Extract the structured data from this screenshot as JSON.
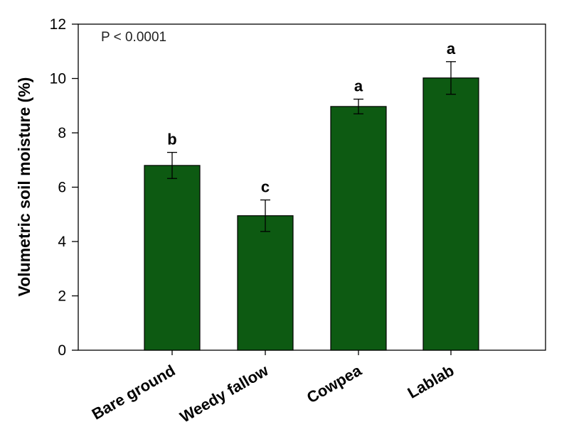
{
  "chart_data": {
    "type": "bar",
    "categories": [
      "Bare ground",
      "Weedy fallow",
      "Cowpea",
      "Lablab"
    ],
    "values": [
      6.8,
      4.95,
      8.97,
      10.02
    ],
    "errors": [
      0.48,
      0.58,
      0.27,
      0.6
    ],
    "significance_letters": [
      "b",
      "c",
      "a",
      "a"
    ],
    "ylabel": "Volumetric soil moisture (%)",
    "xlabel": "",
    "ylim": [
      0,
      12
    ],
    "yticks": [
      0,
      2,
      4,
      6,
      8,
      10,
      12
    ],
    "annotation": "P < 0.0001",
    "bar_color": "#0d5a12",
    "grid": false,
    "legend": "none"
  }
}
